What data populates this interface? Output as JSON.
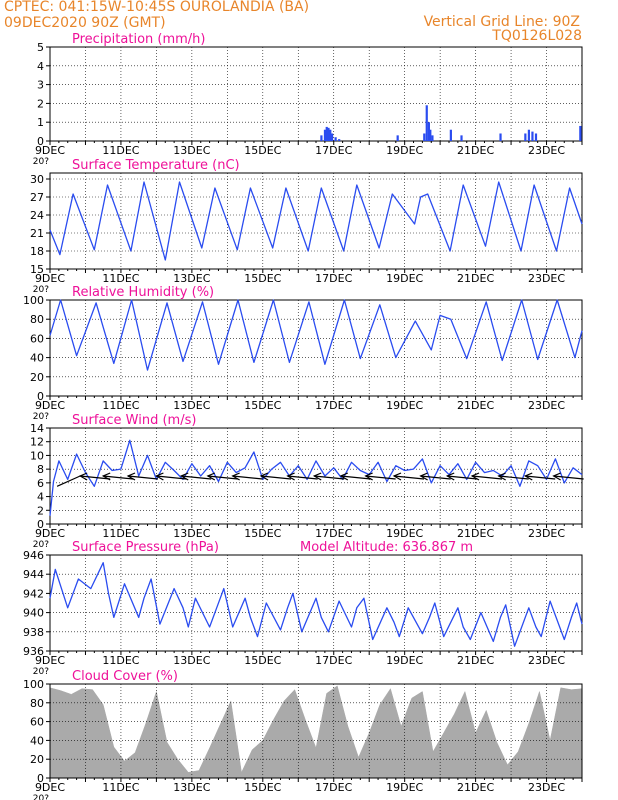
{
  "header": {
    "line1_left": "CPTEC:   041:15W-10:45S   OUROLANDIA (BA)",
    "line2_left": "09DEC2020 90Z (GMT)",
    "line1_right": "Vertical Grid Line: 90Z",
    "line2_right": "TQ0126L028"
  },
  "colors": {
    "header": "#e8852a",
    "title": "#ee1199",
    "line": "#2a4cf0",
    "cloud": "#aaaaaa",
    "wind_arrow": "#000000"
  },
  "stub_label": "20?",
  "chart_data": [
    {
      "id": "precip",
      "type": "bar",
      "title": "Precipitation (mm/h)",
      "ylim": [
        0,
        5
      ],
      "yticks": [
        0,
        1,
        2,
        3,
        4,
        5
      ],
      "xticks": [
        "9DEC",
        "11DEC",
        "13DEC",
        "15DEC",
        "17DEC",
        "19DEC",
        "21DEC",
        "23DEC"
      ],
      "xlim_days": [
        0,
        15
      ],
      "events": [
        {
          "day": 7.65,
          "value": 0.3
        },
        {
          "day": 7.75,
          "value": 0.6
        },
        {
          "day": 7.8,
          "value": 0.75
        },
        {
          "day": 7.85,
          "value": 0.7
        },
        {
          "day": 7.9,
          "value": 0.6
        },
        {
          "day": 7.95,
          "value": 0.4
        },
        {
          "day": 8.05,
          "value": 0.2
        },
        {
          "day": 8.15,
          "value": 0.1
        },
        {
          "day": 9.8,
          "value": 0.3
        },
        {
          "day": 10.55,
          "value": 0.4
        },
        {
          "day": 10.62,
          "value": 1.9
        },
        {
          "day": 10.68,
          "value": 1.0
        },
        {
          "day": 10.72,
          "value": 0.6
        },
        {
          "day": 10.78,
          "value": 0.3
        },
        {
          "day": 11.3,
          "value": 0.6
        },
        {
          "day": 11.6,
          "value": 0.3
        },
        {
          "day": 12.7,
          "value": 0.4
        },
        {
          "day": 13.4,
          "value": 0.4
        },
        {
          "day": 13.5,
          "value": 0.6
        },
        {
          "day": 13.6,
          "value": 0.5
        },
        {
          "day": 13.7,
          "value": 0.4
        },
        {
          "day": 14.95,
          "value": 0.8
        }
      ]
    },
    {
      "id": "temp",
      "type": "line",
      "title": "Surface Temperature (nC)",
      "ylim": [
        15,
        31
      ],
      "yticks": [
        15,
        18,
        21,
        24,
        27,
        30
      ],
      "xticks": [
        "9DEC",
        "11DEC",
        "13DEC",
        "15DEC",
        "17DEC",
        "19DEC",
        "21DEC",
        "23DEC"
      ],
      "xlim_days": [
        0,
        15
      ],
      "x_days": [
        0,
        0.28,
        0.65,
        1.25,
        1.62,
        2.28,
        2.65,
        3.25,
        3.65,
        4.28,
        4.65,
        5.28,
        5.65,
        6.28,
        6.65,
        7.28,
        7.65,
        8.28,
        8.65,
        9.28,
        9.65,
        10.28,
        10.45,
        10.65,
        11.28,
        11.65,
        12.28,
        12.65,
        13.28,
        13.65,
        14.28,
        14.65,
        15
      ],
      "y": [
        21.5,
        17.4,
        27.5,
        18.2,
        29,
        18,
        29.5,
        16.5,
        29.5,
        18.5,
        28.5,
        18.2,
        28.5,
        18.5,
        28.5,
        18,
        28.5,
        18,
        29,
        18.5,
        27.5,
        22.5,
        27,
        27.5,
        18,
        29,
        18.8,
        29.5,
        18,
        29,
        18,
        28.5,
        22.5
      ]
    },
    {
      "id": "rh",
      "type": "line",
      "title": "Relative Humidity (%)",
      "ylim": [
        0,
        100
      ],
      "yticks": [
        0,
        20,
        40,
        60,
        80,
        100
      ],
      "xticks": [
        "9DEC",
        "11DEC",
        "13DEC",
        "15DEC",
        "17DEC",
        "19DEC",
        "21DEC",
        "23DEC"
      ],
      "xlim_days": [
        0,
        15
      ],
      "x_days": [
        0,
        0.3,
        0.75,
        1.3,
        1.8,
        2.3,
        2.75,
        3.3,
        3.75,
        4.3,
        4.75,
        5.3,
        5.75,
        6.3,
        6.75,
        7.3,
        7.75,
        8.3,
        8.75,
        9.3,
        9.75,
        10.3,
        10.75,
        11,
        11.3,
        11.75,
        12.3,
        12.75,
        13.3,
        13.75,
        14.3,
        14.8,
        15
      ],
      "y": [
        63,
        100,
        42,
        97,
        34,
        100,
        27,
        97,
        36,
        98,
        33,
        100,
        35,
        100,
        35,
        98,
        33,
        100,
        39,
        95,
        40,
        78,
        48,
        84,
        80,
        39,
        98,
        37,
        100,
        38,
        100,
        40,
        68
      ]
    },
    {
      "id": "wind",
      "type": "line",
      "title": "Surface Wind (m/s)",
      "ylim": [
        0,
        14
      ],
      "yticks": [
        0,
        2,
        4,
        6,
        8,
        10,
        12,
        14
      ],
      "xticks": [
        "9DEC",
        "11DEC",
        "13DEC",
        "15DEC",
        "17DEC",
        "19DEC",
        "21DEC",
        "23DEC"
      ],
      "xlim_days": [
        0,
        15
      ],
      "x_days": [
        0,
        0.1,
        0.25,
        0.5,
        0.75,
        1.0,
        1.25,
        1.5,
        1.75,
        2.0,
        2.25,
        2.5,
        2.75,
        3.0,
        3.25,
        3.5,
        3.75,
        4.0,
        4.25,
        4.5,
        4.75,
        5.0,
        5.25,
        5.5,
        5.75,
        6.0,
        6.25,
        6.5,
        6.75,
        7.0,
        7.25,
        7.5,
        7.75,
        8.0,
        8.25,
        8.5,
        8.75,
        9.0,
        9.25,
        9.5,
        9.75,
        10.0,
        10.25,
        10.5,
        10.75,
        11.0,
        11.25,
        11.5,
        11.75,
        12.0,
        12.25,
        12.5,
        12.75,
        13.0,
        13.25,
        13.5,
        13.75,
        14.0,
        14.25,
        14.5,
        14.75,
        15.0
      ],
      "y": [
        1.2,
        6.2,
        9.2,
        6.5,
        10.2,
        7.5,
        5.5,
        9.2,
        7.8,
        8.0,
        12.2,
        7.0,
        10.0,
        6.5,
        9.0,
        7.8,
        6.5,
        8.8,
        7.0,
        8.5,
        6.2,
        9.0,
        7.5,
        8.2,
        10.5,
        6.5,
        8.0,
        9.0,
        7.0,
        8.5,
        6.5,
        9.2,
        7.0,
        8.2,
        6.5,
        9.0,
        7.8,
        7.2,
        9.0,
        6.2,
        8.5,
        7.8,
        8.0,
        9.5,
        6.0,
        8.5,
        7.2,
        8.8,
        6.5,
        9.0,
        7.5,
        7.8,
        7.0,
        8.5,
        5.5,
        9.2,
        8.5,
        6.5,
        9.5,
        6.0,
        8.2,
        7.2
      ],
      "vectors_days": [
        0.85,
        1.5,
        2.2,
        3.0,
        3.7,
        4.45,
        5.15,
        5.95,
        6.7,
        7.45,
        8.2,
        8.9,
        9.7,
        10.45,
        11.2,
        11.9,
        12.65,
        13.4,
        14.2
      ]
    },
    {
      "id": "pressure",
      "type": "line",
      "title": "Surface Pressure (hPa)",
      "annotation": "Model Altitude: 636.867 m",
      "ylim": [
        936,
        946
      ],
      "yticks": [
        936,
        938,
        940,
        942,
        944,
        946
      ],
      "xticks": [
        "9DEC",
        "11DEC",
        "13DEC",
        "15DEC",
        "17DEC",
        "19DEC",
        "21DEC",
        "23DEC"
      ],
      "xlim_days": [
        0,
        15
      ],
      "x_days": [
        0,
        0.15,
        0.5,
        0.8,
        1.15,
        1.5,
        1.65,
        1.8,
        2.1,
        2.5,
        2.65,
        2.85,
        3.1,
        3.5,
        3.75,
        3.9,
        4.1,
        4.5,
        4.7,
        4.9,
        5.15,
        5.5,
        5.65,
        5.85,
        6.1,
        6.5,
        6.7,
        6.85,
        7.1,
        7.5,
        7.65,
        7.85,
        8.15,
        8.5,
        8.65,
        8.85,
        9.1,
        9.5,
        9.7,
        9.85,
        10.1,
        10.5,
        10.7,
        10.85,
        11.1,
        11.5,
        11.65,
        11.85,
        12.15,
        12.5,
        12.7,
        12.85,
        13.1,
        13.5,
        13.7,
        13.85,
        14.1,
        14.5,
        14.7,
        14.85,
        15
      ],
      "y": [
        941.5,
        944.5,
        940.5,
        943.5,
        942.5,
        945.2,
        942,
        939.5,
        943,
        939.5,
        941.5,
        943.5,
        938.8,
        942.5,
        940.5,
        938.5,
        941.5,
        938.5,
        940.5,
        942.5,
        938.5,
        941.5,
        939.5,
        937.5,
        941,
        938.2,
        940.5,
        942,
        938,
        941.5,
        939.5,
        938,
        941.2,
        938.5,
        940.5,
        941.5,
        937.2,
        940.5,
        939,
        937.5,
        940.5,
        937.8,
        939.5,
        941,
        937.5,
        940.5,
        938.5,
        937.2,
        940,
        937,
        939.5,
        940.8,
        936.5,
        940.5,
        938.5,
        937.5,
        941.2,
        937.2,
        939.5,
        941,
        938.8
      ]
    },
    {
      "id": "cloud",
      "type": "area",
      "title": "Cloud Cover (%)",
      "ylim": [
        0,
        100
      ],
      "yticks": [
        0,
        20,
        40,
        60,
        80,
        100
      ],
      "xticks": [
        "9DEC",
        "11DEC",
        "13DEC",
        "15DEC",
        "17DEC",
        "19DEC",
        "21DEC",
        "23DEC"
      ],
      "xlim_days": [
        0,
        15
      ],
      "x_days": [
        0,
        0.3,
        0.6,
        0.9,
        1.2,
        1.5,
        1.8,
        2.1,
        2.4,
        2.7,
        3.0,
        3.3,
        3.6,
        3.9,
        4.2,
        4.5,
        4.8,
        5.1,
        5.4,
        5.7,
        6.0,
        6.3,
        6.6,
        6.9,
        7.2,
        7.5,
        7.8,
        8.1,
        8.4,
        8.7,
        9.0,
        9.3,
        9.6,
        9.9,
        10.2,
        10.5,
        10.8,
        11.1,
        11.4,
        11.7,
        12.0,
        12.3,
        12.6,
        12.9,
        13.2,
        13.5,
        13.8,
        14.1,
        14.4,
        14.7,
        15.0
      ],
      "y": [
        96,
        93,
        89,
        95,
        94,
        78,
        33,
        18,
        27,
        58,
        92,
        38,
        20,
        6,
        8,
        32,
        57,
        82,
        6,
        30,
        40,
        62,
        82,
        94,
        62,
        32,
        90,
        98,
        55,
        22,
        48,
        78,
        95,
        55,
        85,
        92,
        28,
        48,
        68,
        92,
        48,
        72,
        38,
        14,
        28,
        58,
        92,
        40,
        96,
        94,
        95
      ]
    }
  ]
}
